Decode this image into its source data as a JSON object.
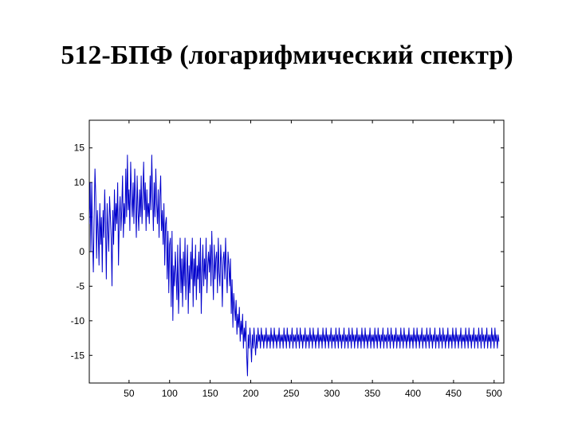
{
  "title": "512-БПФ (логарифмический спектр)",
  "chart_data": {
    "type": "line",
    "title": "",
    "xlabel": "",
    "ylabel": "",
    "xlim": [
      1,
      512
    ],
    "ylim": [
      -19,
      19
    ],
    "x_ticks": [
      50,
      100,
      150,
      200,
      250,
      300,
      350,
      400,
      450,
      500
    ],
    "y_ticks": [
      -15,
      -10,
      -5,
      0,
      5,
      10,
      15
    ],
    "grid": false,
    "line_color": "#0000cc",
    "series": [
      {
        "values": [
          4,
          10,
          0,
          10,
          2,
          -3,
          5,
          12,
          8,
          -1,
          6,
          3,
          -2,
          7,
          1,
          5,
          -3,
          6,
          2,
          9,
          4,
          -4,
          7,
          3,
          0,
          8,
          5,
          2,
          -5,
          6,
          1,
          9,
          3,
          7,
          4,
          10,
          -2,
          5,
          8,
          3,
          6,
          11,
          2,
          7,
          4,
          12,
          5,
          14,
          6,
          9,
          3,
          13,
          8,
          5,
          10,
          4,
          12,
          7,
          2,
          11,
          6,
          3,
          9,
          5,
          11,
          4,
          8,
          13,
          6,
          10,
          3,
          9,
          5,
          7,
          4,
          11,
          6,
          14,
          8,
          3,
          10,
          5,
          12,
          7,
          4,
          9,
          2,
          8,
          11,
          3,
          6,
          1,
          7,
          -2,
          4,
          5,
          -4,
          3,
          -6,
          1,
          2,
          -8,
          3,
          -10,
          -2,
          -5,
          0,
          -3,
          -7,
          1,
          -9,
          -4,
          2,
          -6,
          -1,
          -8,
          0,
          -5,
          2,
          -7,
          -3,
          1,
          -9,
          -2,
          -6,
          0,
          -4,
          2,
          -8,
          -1,
          -5,
          1,
          -7,
          -2,
          -4,
          0,
          -6,
          2,
          -9,
          -3,
          1,
          -5,
          -1,
          -4,
          2,
          -6,
          -2,
          0,
          -3,
          1,
          -5,
          3,
          -2,
          -7,
          1,
          -4,
          -1,
          0,
          -6,
          2,
          -3,
          -5,
          1,
          -2,
          -8,
          -1,
          0,
          -4,
          2,
          -3,
          -6,
          0,
          -2,
          -5,
          -1,
          -9,
          -4,
          -11,
          -6,
          -8,
          -10,
          -7,
          -12,
          -9,
          -11,
          -8,
          -13,
          -10,
          -12,
          -9,
          -14,
          -11,
          -13,
          -10,
          -15,
          -18,
          -12,
          -14,
          -11,
          -13,
          -16,
          -12,
          -14,
          -11,
          -13,
          -15,
          -12,
          -14,
          -11,
          -13,
          -12,
          -14,
          -11,
          -13,
          -12,
          -14,
          -12,
          -13,
          -11,
          -14,
          -12,
          -13,
          -12,
          -14,
          -11,
          -13,
          -12,
          -14,
          -11,
          -13,
          -12,
          -14,
          -12,
          -13,
          -11,
          -14,
          -12,
          -13,
          -12,
          -14,
          -11,
          -13,
          -12,
          -14,
          -11,
          -13,
          -12,
          -14,
          -12,
          -13,
          -11,
          -14,
          -12,
          -13,
          -12,
          -14,
          -11,
          -13,
          -12,
          -14,
          -11,
          -13,
          -12,
          -14,
          -12,
          -13,
          -11,
          -14,
          -12,
          -13,
          -12,
          -14,
          -11,
          -13,
          -12,
          -14,
          -11,
          -13,
          -12,
          -14,
          -12,
          -13,
          -11,
          -14,
          -12,
          -13,
          -12,
          -14,
          -11,
          -13,
          -12,
          -14,
          -11,
          -13,
          -12,
          -14,
          -12,
          -13,
          -11,
          -14,
          -12,
          -13,
          -12,
          -14,
          -11,
          -13,
          -12,
          -14,
          -11,
          -13,
          -12,
          -14,
          -12,
          -13,
          -11,
          -14,
          -12,
          -13,
          -12,
          -14,
          -11,
          -13,
          -12,
          -14,
          -11,
          -13,
          -12,
          -14,
          -12,
          -13,
          -11,
          -14,
          -12,
          -13,
          -12,
          -14,
          -11,
          -13,
          -12,
          -14,
          -11,
          -13,
          -12,
          -14,
          -12,
          -13,
          -11,
          -14,
          -12,
          -13,
          -12,
          -14,
          -11,
          -13,
          -12,
          -14,
          -11,
          -13,
          -12,
          -14,
          -12,
          -13,
          -11,
          -14,
          -12,
          -13,
          -12,
          -14,
          -11,
          -13,
          -12,
          -14,
          -11,
          -13,
          -12,
          -14,
          -12,
          -13,
          -11,
          -14,
          -12,
          -13,
          -12,
          -14,
          -11,
          -13,
          -12,
          -14,
          -11,
          -13,
          -12,
          -14,
          -12,
          -13,
          -11,
          -14,
          -12,
          -13,
          -12,
          -14,
          -11,
          -13,
          -12,
          -14,
          -11,
          -13,
          -12,
          -14,
          -12,
          -13,
          -11,
          -14,
          -12,
          -13,
          -12,
          -14,
          -11,
          -13,
          -12,
          -14,
          -11,
          -13,
          -12,
          -14,
          -12,
          -13,
          -11,
          -14,
          -12,
          -13,
          -12,
          -14,
          -11,
          -13,
          -12,
          -14,
          -11,
          -13,
          -12,
          -14,
          -12,
          -13,
          -11,
          -14,
          -12,
          -13,
          -12,
          -14,
          -11,
          -13,
          -12,
          -14,
          -11,
          -13,
          -12,
          -14,
          -12,
          -13,
          -11,
          -14,
          -12,
          -13,
          -12,
          -14,
          -11,
          -13,
          -12,
          -14,
          -11,
          -13,
          -12,
          -14,
          -12,
          -13,
          -11,
          -14,
          -12,
          -13,
          -12,
          -14,
          -11,
          -13,
          -12,
          -14,
          -11,
          -13,
          -12,
          -14,
          -12,
          -13,
          -11,
          -14,
          -12,
          -13,
          -12,
          -14,
          -11,
          -13,
          -12,
          -14,
          -11,
          -13,
          -12,
          -14,
          -12,
          -13
        ]
      }
    ]
  }
}
